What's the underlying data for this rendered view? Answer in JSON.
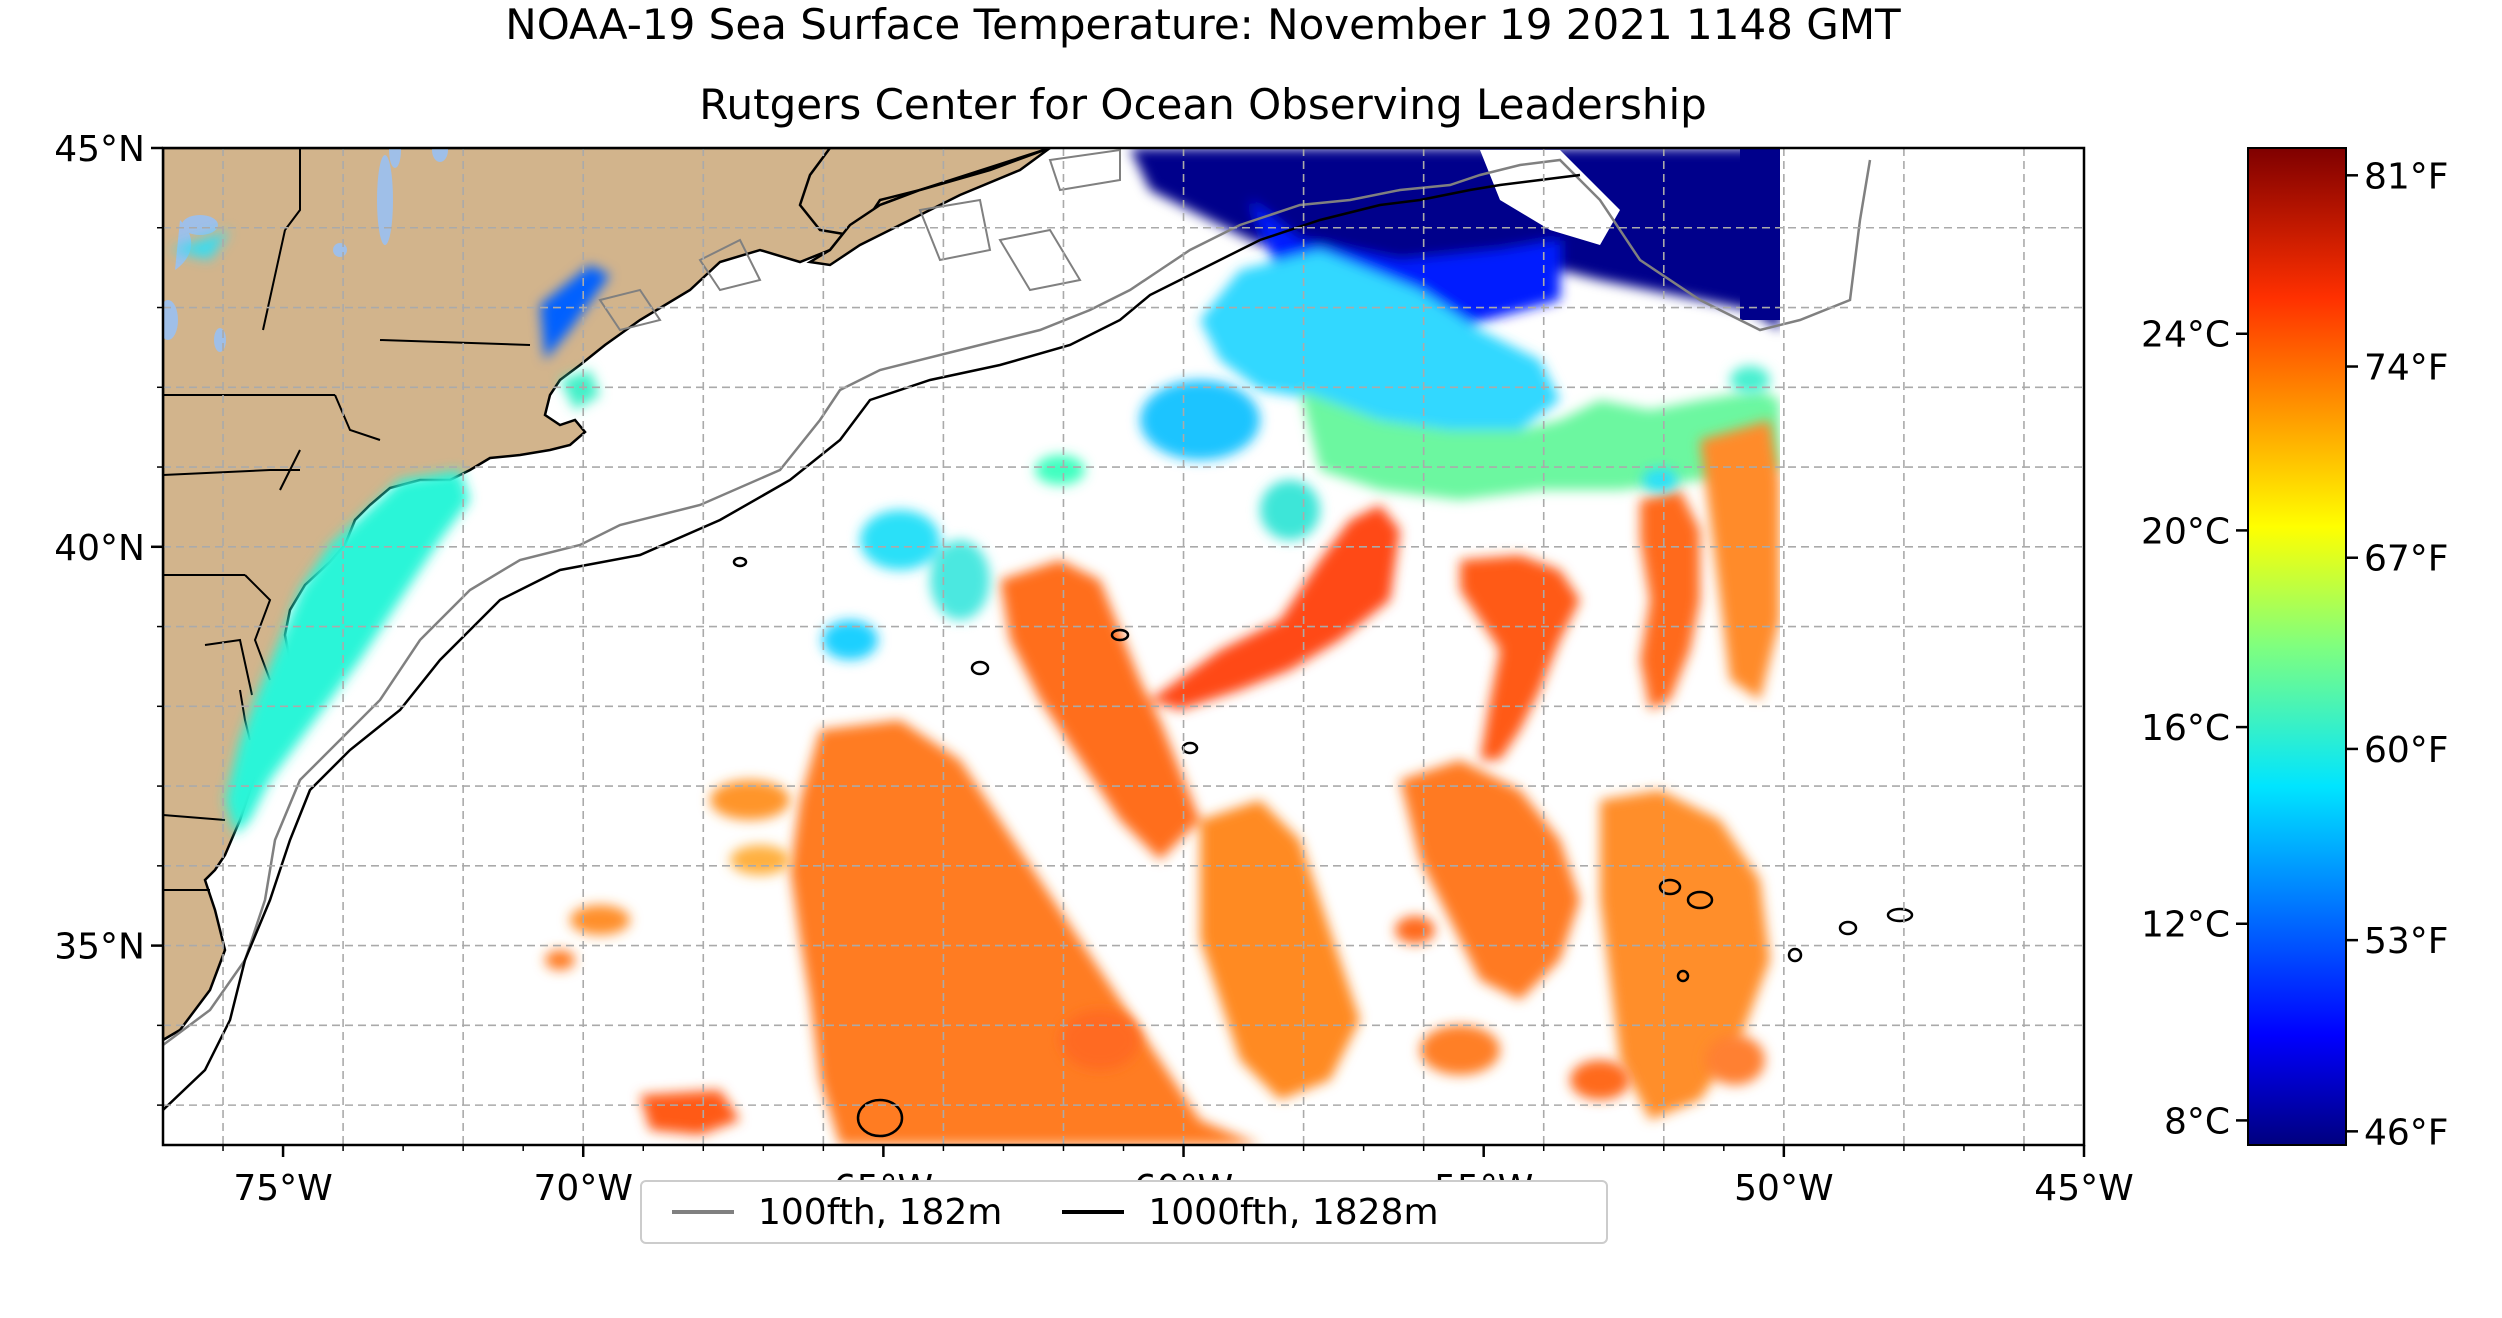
{
  "title": "NOAA-19 Sea Surface Temperature: November 19 2021 1148 GMT",
  "subtitle": "Rutgers Center for Ocean Observing Leadership",
  "map": {
    "lon_range": [
      -77,
      -45
    ],
    "lat_range": [
      32.5,
      45
    ],
    "lon_ticks": [
      "75°W",
      "70°W",
      "65°W",
      "60°W",
      "55°W",
      "50°W",
      "45°W"
    ],
    "lat_ticks": [
      "45°N",
      "40°N",
      "35°N"
    ],
    "land_color": "#d2b48c",
    "lake_color": "#9fbfe8",
    "grid": true,
    "data_east_edge_lon": -50
  },
  "colorbar": {
    "colormap": "jet",
    "celsius_ticks": [
      "24°C",
      "20°C",
      "16°C",
      "12°C",
      "8°C"
    ],
    "fahrenheit_ticks": [
      "81°F",
      "74°F",
      "67°F",
      "60°F",
      "53°F",
      "46°F"
    ],
    "range_f": [
      45.5,
      82
    ]
  },
  "legend": {
    "items": [
      {
        "label": "100fth, 182m",
        "color": "#808080"
      },
      {
        "label": "1000fth, 1828m",
        "color": "#000000"
      }
    ]
  }
}
